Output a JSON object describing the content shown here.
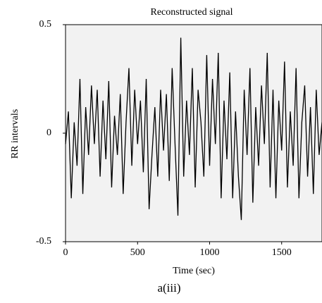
{
  "chart_data": {
    "type": "line",
    "title": "Reconstructed signal",
    "xlabel": "Time (sec)",
    "ylabel": "RR intervals",
    "caption": "a(iii)",
    "x": [
      0,
      20,
      40,
      60,
      80,
      100,
      120,
      140,
      160,
      180,
      200,
      220,
      240,
      260,
      280,
      300,
      320,
      340,
      360,
      380,
      400,
      420,
      440,
      460,
      480,
      500,
      520,
      540,
      560,
      580,
      600,
      620,
      640,
      660,
      680,
      700,
      720,
      740,
      760,
      780,
      800,
      820,
      840,
      860,
      880,
      900,
      920,
      940,
      960,
      980,
      1000,
      1020,
      1040,
      1060,
      1080,
      1100,
      1120,
      1140,
      1160,
      1180,
      1200,
      1220,
      1240,
      1260,
      1280,
      1300,
      1320,
      1340,
      1360,
      1380,
      1400,
      1420,
      1440,
      1460,
      1480,
      1500,
      1520,
      1540,
      1560,
      1580,
      1600,
      1620,
      1640,
      1660,
      1680,
      1700,
      1720,
      1740,
      1760,
      1780
    ],
    "values": [
      -0.05,
      0.1,
      -0.3,
      0.05,
      -0.15,
      0.25,
      -0.28,
      0.12,
      -0.1,
      0.22,
      -0.05,
      0.2,
      -0.2,
      0.15,
      -0.12,
      0.24,
      -0.25,
      0.08,
      -0.1,
      0.18,
      -0.28,
      0.05,
      0.3,
      -0.15,
      0.2,
      -0.05,
      0.15,
      -0.18,
      0.25,
      -0.35,
      -0.1,
      0.12,
      -0.2,
      0.2,
      -0.08,
      0.18,
      -0.22,
      0.3,
      -0.05,
      -0.38,
      0.44,
      -0.2,
      0.15,
      -0.1,
      0.3,
      -0.25,
      0.2,
      0.05,
      -0.2,
      0.36,
      -0.15,
      0.25,
      -0.05,
      0.37,
      -0.3,
      0.15,
      -0.12,
      0.28,
      -0.3,
      0.1,
      -0.2,
      -0.4,
      0.2,
      -0.1,
      0.3,
      -0.32,
      0.12,
      -0.15,
      0.22,
      -0.05,
      0.37,
      -0.25,
      0.2,
      -0.3,
      0.15,
      -0.08,
      0.33,
      -0.25,
      0.1,
      -0.15,
      0.3,
      -0.3,
      0.05,
      0.22,
      -0.2,
      0.12,
      -0.28,
      0.2,
      -0.1,
      0.05
    ],
    "color": "#000000",
    "background": "#f2f2f2",
    "xlim": [
      0,
      1780
    ],
    "xticks": [
      0,
      500,
      1000,
      1500
    ],
    "ylim": [
      -0.5,
      0.5
    ],
    "yticks": [
      0.5,
      0,
      -0.5
    ],
    "grid": false
  }
}
